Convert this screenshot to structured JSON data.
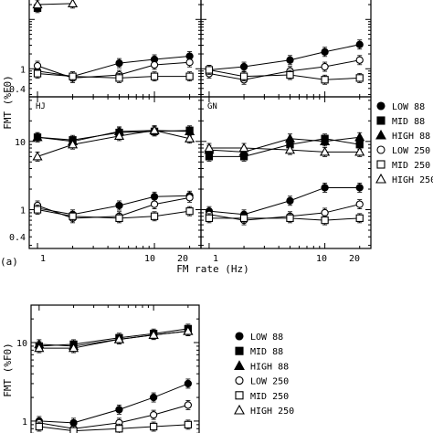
{
  "chart_data": [
    {
      "type": "line",
      "panel_label": "",
      "x": [
        1,
        2,
        5,
        10,
        20
      ],
      "xscale": "log",
      "yscale": "log",
      "xlim": [
        0.85,
        25
      ],
      "ylim": [
        0.27,
        45
      ],
      "series": [
        {
          "name": "LOW 88",
          "marker": "circle-filled",
          "values": [
            0.9,
            0.7,
            1.3,
            1.55,
            1.8
          ]
        },
        {
          "name": "MID 88",
          "marker": "square-filled",
          "values": [
            17,
            null,
            null,
            null,
            null
          ]
        },
        {
          "name": "HIGH 88",
          "marker": "triangle-filled",
          "values": [
            null,
            null,
            null,
            null,
            null
          ]
        },
        {
          "name": "LOW 250",
          "marker": "circle-open",
          "values": [
            1.15,
            0.65,
            0.75,
            1.2,
            1.35
          ]
        },
        {
          "name": "MID 250",
          "marker": "square-open",
          "values": [
            0.8,
            0.7,
            0.65,
            0.7,
            0.7
          ]
        },
        {
          "name": "HIGH 250",
          "marker": "triangle-open",
          "values": [
            20,
            21,
            null,
            null,
            null
          ]
        }
      ],
      "yticks": [
        0.4,
        1
      ]
    },
    {
      "type": "line",
      "panel_label": "",
      "x": [
        1,
        2,
        5,
        10,
        20
      ],
      "xscale": "log",
      "yscale": "log",
      "xlim": [
        0.85,
        25
      ],
      "ylim": [
        0.27,
        45
      ],
      "series": [
        {
          "name": "LOW 88",
          "marker": "circle-filled",
          "values": [
            0.95,
            1.1,
            1.5,
            2.2,
            3.1
          ]
        },
        {
          "name": "MID 88",
          "marker": "square-filled",
          "values": [
            null,
            null,
            null,
            null,
            null
          ]
        },
        {
          "name": "HIGH 88",
          "marker": "triangle-filled",
          "values": [
            null,
            null,
            null,
            null,
            null
          ]
        },
        {
          "name": "LOW 250",
          "marker": "circle-open",
          "values": [
            0.8,
            0.6,
            0.9,
            1.1,
            1.5
          ]
        },
        {
          "name": "MID 250",
          "marker": "square-open",
          "values": [
            0.95,
            0.7,
            0.75,
            0.6,
            0.65
          ]
        },
        {
          "name": "HIGH 250",
          "marker": "triangle-open",
          "values": [
            null,
            null,
            null,
            null,
            null
          ]
        }
      ],
      "yticks": []
    },
    {
      "type": "line",
      "panel_label": "HJ",
      "x": [
        1,
        2,
        5,
        10,
        20
      ],
      "xscale": "log",
      "yscale": "log",
      "xlim": [
        0.85,
        25
      ],
      "ylim": [
        0.27,
        45
      ],
      "series": [
        {
          "name": "LOW 88",
          "marker": "circle-filled",
          "values": [
            1.05,
            0.85,
            1.15,
            1.55,
            1.6
          ]
        },
        {
          "name": "MID 88",
          "marker": "square-filled",
          "values": [
            11.5,
            10.5,
            13.5,
            14.0,
            14.5
          ]
        },
        {
          "name": "HIGH 88",
          "marker": "triangle-filled",
          "values": [
            11.5,
            10.0,
            14.0,
            14.5,
            14.0
          ]
        },
        {
          "name": "LOW 250",
          "marker": "circle-open",
          "values": [
            1.15,
            0.75,
            0.8,
            1.2,
            1.5
          ]
        },
        {
          "name": "MID 250",
          "marker": "square-open",
          "values": [
            1.0,
            0.8,
            0.75,
            0.8,
            0.95
          ]
        },
        {
          "name": "HIGH 250",
          "marker": "triangle-open",
          "values": [
            6.0,
            9.0,
            12.0,
            14.5,
            11.0
          ]
        }
      ],
      "yticks": [
        0.4,
        1,
        10
      ]
    },
    {
      "type": "line",
      "panel_label": "GN",
      "x": [
        1,
        2,
        5,
        10,
        20
      ],
      "xscale": "log",
      "yscale": "log",
      "xlim": [
        0.85,
        25
      ],
      "ylim": [
        0.27,
        45
      ],
      "series": [
        {
          "name": "LOW 88",
          "marker": "circle-filled",
          "values": [
            0.95,
            0.85,
            1.35,
            2.1,
            2.1
          ]
        },
        {
          "name": "MID 88",
          "marker": "square-filled",
          "values": [
            6.0,
            6.0,
            9.0,
            11.0,
            9.0
          ]
        },
        {
          "name": "HIGH 88",
          "marker": "triangle-filled",
          "values": [
            7.5,
            7.0,
            11.0,
            10.0,
            11.5
          ]
        },
        {
          "name": "LOW 250",
          "marker": "circle-open",
          "values": [
            0.85,
            0.7,
            0.8,
            0.9,
            1.2
          ]
        },
        {
          "name": "MID 250",
          "marker": "square-open",
          "values": [
            0.75,
            0.75,
            0.75,
            0.7,
            0.75
          ]
        },
        {
          "name": "HIGH 250",
          "marker": "triangle-open",
          "values": [
            8.0,
            8.0,
            7.5,
            7.0,
            7.0
          ]
        }
      ],
      "yticks": []
    },
    {
      "type": "line",
      "panel_label": "",
      "x": [
        1,
        2,
        5,
        10,
        20
      ],
      "xscale": "log",
      "yscale": "log",
      "xlim": [
        0.85,
        25
      ],
      "ylim": [
        0.6,
        30
      ],
      "series": [
        {
          "name": "LOW 88",
          "marker": "circle-filled",
          "values": [
            1.0,
            0.95,
            1.4,
            2.0,
            3.0
          ]
        },
        {
          "name": "MID 88",
          "marker": "square-filled",
          "values": [
            9.0,
            9.5,
            11.5,
            13.0,
            15.0
          ]
        },
        {
          "name": "HIGH 88",
          "marker": "triangle-filled",
          "values": [
            9.5,
            9.0,
            11.0,
            12.5,
            14.0
          ]
        },
        {
          "name": "LOW 250",
          "marker": "circle-open",
          "values": [
            0.95,
            0.8,
            0.95,
            1.2,
            1.6
          ]
        },
        {
          "name": "MID 250",
          "marker": "square-open",
          "values": [
            0.85,
            0.75,
            0.8,
            0.85,
            0.9
          ]
        },
        {
          "name": "HIGH 250",
          "marker": "triangle-open",
          "values": [
            8.5,
            8.5,
            11.0,
            12.5,
            14.0
          ]
        }
      ],
      "yticks": [
        1,
        10
      ]
    }
  ],
  "labels": {
    "ylabel_top": "FMT (%F0)",
    "ylabel_bottom": "FMT (%F0)",
    "xlabel": "FM rate (Hz)",
    "part_label": "(a)"
  },
  "x_tick_labels": [
    "1",
    "10",
    "20"
  ],
  "legend": {
    "entries": [
      "LOW 88",
      "MID 88",
      "HIGH 88",
      "LOW 250",
      "MID 250",
      "HIGH 250"
    ]
  }
}
